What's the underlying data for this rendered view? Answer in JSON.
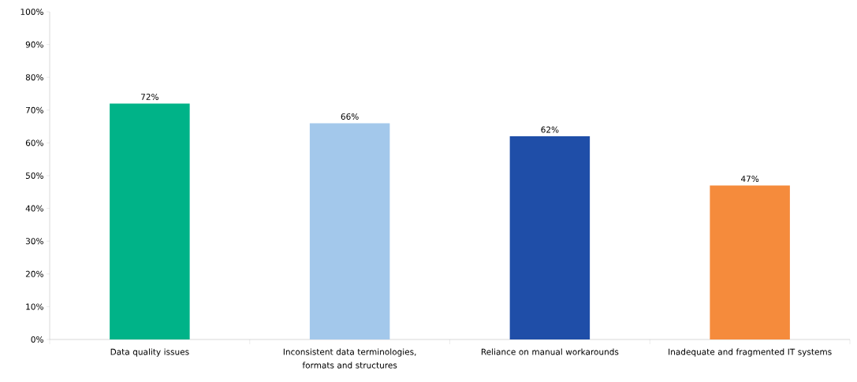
{
  "chart_data": {
    "type": "bar",
    "categories": [
      "Data quality issues",
      "Inconsistent data terminologies, formats and structures",
      "Reliance on manual workarounds",
      "Inadequate and fragmented IT systems"
    ],
    "values": [
      72,
      66,
      62,
      47
    ],
    "colors": [
      "#00b388",
      "#a3c8eb",
      "#1f4ea8",
      "#f58b3c"
    ],
    "value_labels": [
      "72%",
      "66%",
      "62%",
      "47%"
    ],
    "ylim": [
      0,
      100
    ],
    "yticks": [
      {
        "value": 0,
        "label": "0%"
      },
      {
        "value": 10,
        "label": "10%"
      },
      {
        "value": 20,
        "label": "20%"
      },
      {
        "value": 30,
        "label": "30%"
      },
      {
        "value": 40,
        "label": "40%"
      },
      {
        "value": 50,
        "label": "50%"
      },
      {
        "value": 60,
        "label": "60%"
      },
      {
        "value": 70,
        "label": "70%"
      },
      {
        "value": 80,
        "label": "80%"
      },
      {
        "value": 90,
        "label": "90%"
      },
      {
        "value": 100,
        "label": "100%"
      }
    ],
    "grid": false
  }
}
